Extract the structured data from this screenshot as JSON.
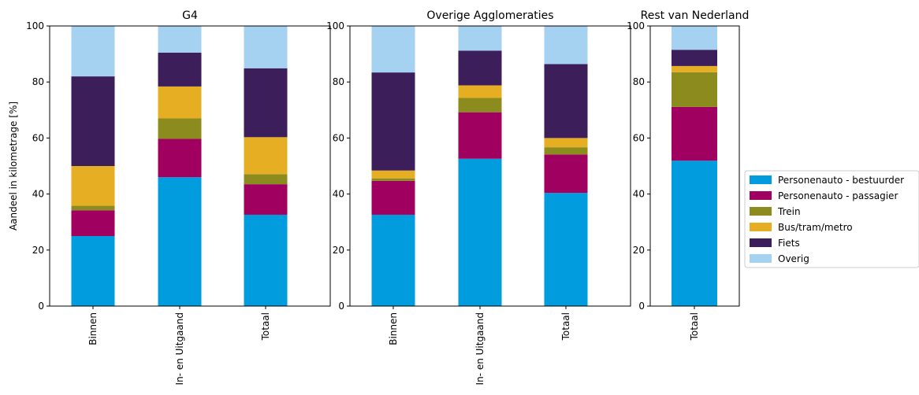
{
  "chart_data": {
    "type": "bar",
    "stacked": true,
    "ylabel": "Aandeel in kilometrage [%]",
    "ylim": [
      0,
      100
    ],
    "yticks": [
      0,
      20,
      40,
      60,
      80,
      100
    ],
    "grid": false,
    "legend_position": "right",
    "series": [
      {
        "name": "Personenauto - bestuurder",
        "color": "#009CDE"
      },
      {
        "name": "Personenauto - passagier",
        "color": "#A0005F"
      },
      {
        "name": "Trein",
        "color": "#8C8C1E"
      },
      {
        "name": "Bus/tram/metro",
        "color": "#E6AF23"
      },
      {
        "name": "Fiets",
        "color": "#3C1E5A"
      },
      {
        "name": "Overig",
        "color": "#A5D2F0"
      }
    ],
    "panels": [
      {
        "title": "G4",
        "categories": [
          "Binnen",
          "In- en Uitgaand",
          "Totaal"
        ],
        "values": [
          [
            25.0,
            9.2,
            1.6,
            14.2,
            32.0,
            18.0
          ],
          [
            46.0,
            13.7,
            7.3,
            11.4,
            12.1,
            9.5
          ],
          [
            32.6,
            10.9,
            3.6,
            13.2,
            24.6,
            15.1
          ]
        ]
      },
      {
        "title": "Overige Agglomeraties",
        "categories": [
          "Binnen",
          "In- en Uitgaand",
          "Totaal"
        ],
        "values": [
          [
            32.6,
            12.1,
            0.9,
            2.8,
            35.0,
            16.6
          ],
          [
            52.6,
            16.6,
            5.1,
            4.5,
            12.4,
            8.8
          ],
          [
            40.4,
            13.7,
            2.6,
            3.3,
            26.4,
            13.6
          ]
        ]
      },
      {
        "title": "Rest van Nederland",
        "categories": [
          "Totaal"
        ],
        "values": [
          [
            51.9,
            19.2,
            12.4,
            2.2,
            5.8,
            8.5
          ]
        ]
      }
    ]
  }
}
